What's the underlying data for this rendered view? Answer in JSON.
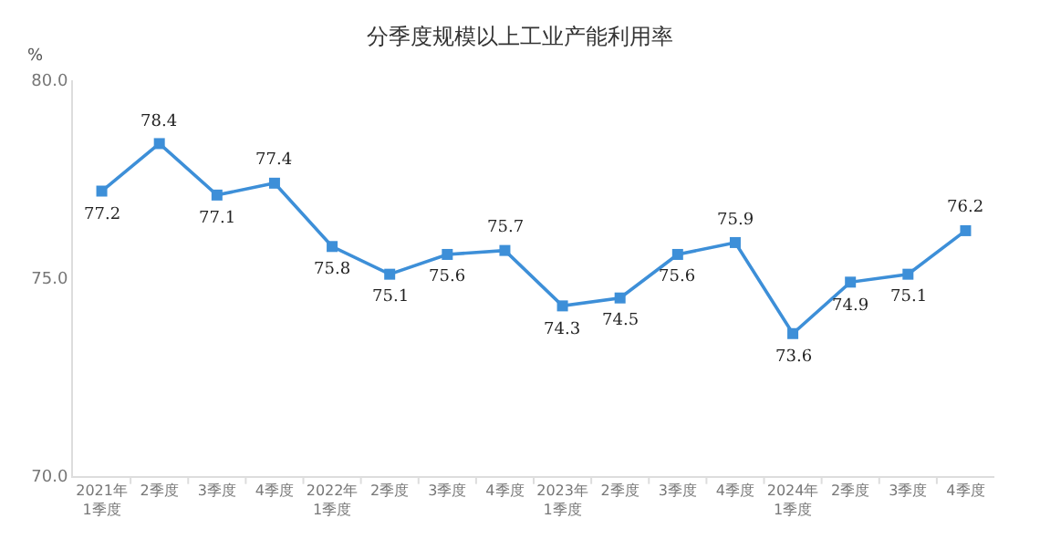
{
  "chart_data": {
    "type": "line",
    "title": "分季度规模以上工业产能利用率",
    "ylabel": "%",
    "categories": [
      "2021年\n1季度",
      "2季度",
      "3季度",
      "4季度",
      "2022年\n1季度",
      "2季度",
      "3季度",
      "4季度",
      "2023年\n1季度",
      "2季度",
      "3季度",
      "4季度",
      "2024年\n1季度",
      "2季度",
      "3季度",
      "4季度"
    ],
    "series": [
      {
        "color": "#3d8fd8",
        "values": [
          77.2,
          78.4,
          77.1,
          77.4,
          75.8,
          75.1,
          75.6,
          75.7,
          74.3,
          74.5,
          75.6,
          75.9,
          73.6,
          74.9,
          75.1,
          76.2
        ]
      }
    ],
    "ylim": [
      70,
      80
    ],
    "yticks": [
      {
        "value": 70,
        "label": "70.0"
      },
      {
        "value": 75,
        "label": "75.0"
      },
      {
        "value": 80,
        "label": "80.0"
      }
    ],
    "grid": false,
    "marker": "square",
    "line_style": "solid",
    "data_labels": true
  }
}
